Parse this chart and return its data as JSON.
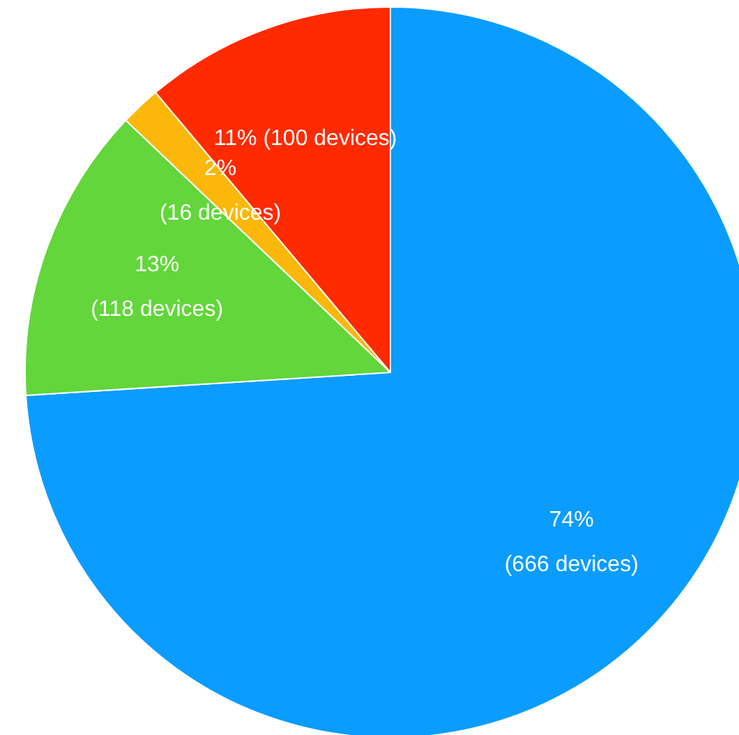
{
  "chart_data": {
    "type": "pie",
    "categories": [
      null,
      null,
      null,
      null
    ],
    "values": [
      666,
      118,
      16,
      100
    ],
    "colors": [
      "#0a9cff",
      "#62d63a",
      "#fbb80a",
      "#ff2a00"
    ],
    "value_labels": [
      "74%\n(666 devices)",
      "13%\n(118 devices)",
      "2%\n(16 devices)",
      "11% (100 devices)"
    ],
    "legend": false
  }
}
